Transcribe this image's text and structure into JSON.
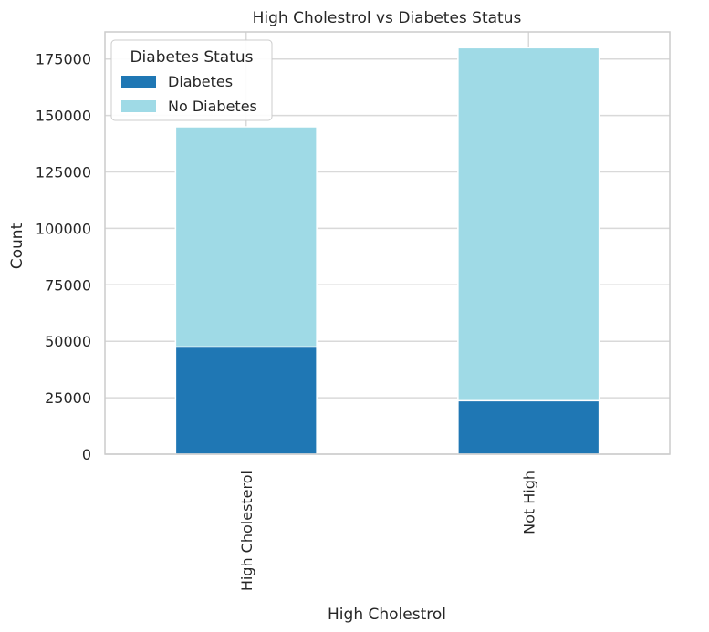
{
  "chart_data": {
    "type": "bar",
    "stacked": true,
    "title": "High Cholestrol vs Diabetes Status",
    "xlabel": "High Cholestrol",
    "ylabel": "Count",
    "categories": [
      "High Cholesterol",
      "Not High"
    ],
    "series": [
      {
        "name": "Diabetes",
        "values": [
          47500,
          23700
        ],
        "color": "#1f77b4"
      },
      {
        "name": "No Diabetes",
        "values": [
          97500,
          156300
        ],
        "color": "#9fdae6"
      }
    ],
    "ylim": [
      0,
      187000
    ],
    "yticks": [
      0,
      25000,
      50000,
      75000,
      100000,
      125000,
      150000,
      175000
    ],
    "ytick_labels": [
      "0",
      "25000",
      "50000",
      "75000",
      "100000",
      "125000",
      "150000",
      "175000"
    ],
    "grid": true,
    "legend": {
      "title": "Diabetes Status",
      "position": "top-left"
    },
    "colors": {
      "grid": "#d9d9d9",
      "spine": "#cccccc",
      "text": "#262626"
    }
  }
}
